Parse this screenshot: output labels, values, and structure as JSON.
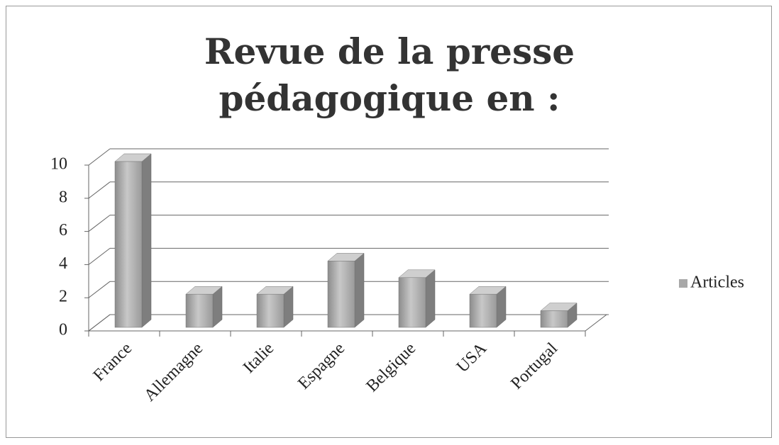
{
  "chart_data": {
    "type": "bar3d",
    "title": "Revue de la presse pédagogique en :",
    "categories": [
      "France",
      "Allemagne",
      "Italie",
      "Espagne",
      "Belgique",
      "USA",
      "Portugal"
    ],
    "series": [
      {
        "name": "Articles",
        "color": "#a8a8a8",
        "values": [
          10,
          2,
          2,
          4,
          3,
          2,
          1
        ]
      }
    ],
    "ylim": [
      0,
      10
    ],
    "yticks": [
      0,
      2,
      4,
      6,
      8,
      10
    ],
    "grid": true,
    "legend": "right"
  }
}
